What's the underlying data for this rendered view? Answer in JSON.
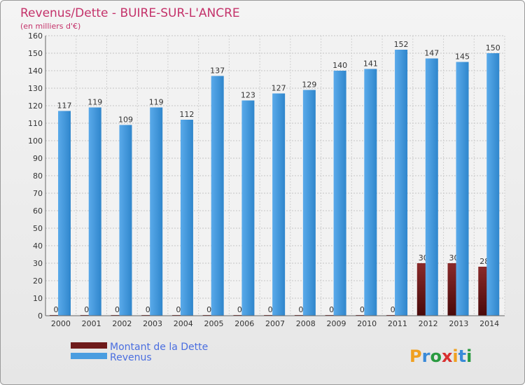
{
  "chart_data": {
    "type": "bar",
    "title": "Revenus/Dette - BUIRE-SUR-L'ANCRE",
    "subtitle": "(en milliers d'€)",
    "xlabel": "",
    "ylabel": "",
    "ylim": [
      0,
      160
    ],
    "yticks": [
      0,
      10,
      20,
      30,
      40,
      50,
      60,
      70,
      80,
      90,
      100,
      110,
      120,
      130,
      140,
      150,
      160
    ],
    "grid": true,
    "categories": [
      "2000",
      "2001",
      "2002",
      "2003",
      "2004",
      "2005",
      "2006",
      "2007",
      "2008",
      "2009",
      "2010",
      "2011",
      "2012",
      "2013",
      "2014"
    ],
    "series": [
      {
        "name": "Montant de la Dette",
        "color": "#6e1a1a",
        "values": [
          0,
          0,
          0,
          0,
          0,
          0,
          0,
          0,
          0,
          0,
          0,
          0,
          30,
          30,
          28
        ]
      },
      {
        "name": "Revenus",
        "color": "#4a9de0",
        "values": [
          117,
          119,
          109,
          119,
          112,
          137,
          123,
          127,
          129,
          140,
          141,
          152,
          147,
          145,
          150
        ]
      }
    ],
    "legend_position": "bottom-left"
  },
  "brand": {
    "name": "Proxiti",
    "letters": [
      "P",
      "r",
      "o",
      "x",
      "i",
      "t",
      "i"
    ],
    "letter_colors": [
      "#f0a020",
      "#3a8ad8",
      "#2a9a40",
      "#d83030",
      "#f0a020",
      "#3a8ad8",
      "#2a9a40"
    ]
  }
}
